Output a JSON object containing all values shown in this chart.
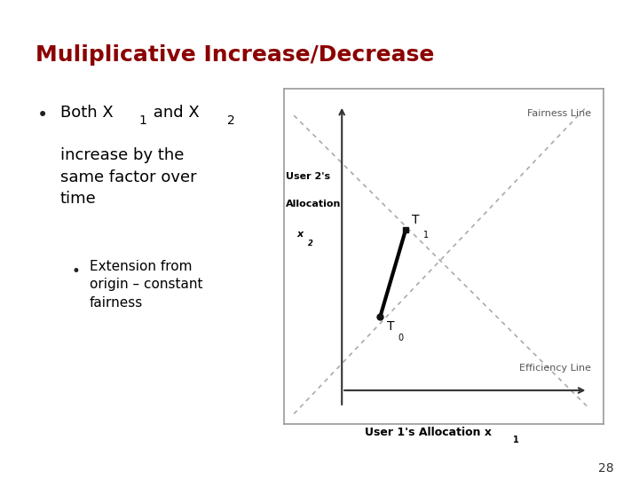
{
  "title": "Muliplicative Increase/Decrease",
  "title_color": "#8B0000",
  "title_fontsize": 18,
  "bg_color": "#FFFFFF",
  "header_bar_color": "#1a3a6b",
  "left_stripe_color_dark": "#B8B87A",
  "left_stripe_color_light": "#D8D8B0",
  "bullet1_text": "Both X",
  "bullet1_sub1": "1",
  "bullet1_mid": " and X",
  "bullet1_sub2": "2",
  "bullet1_cont": " increase by the\nsame factor over\ntime",
  "bullet2": "Extension from\norigin – constant\nfairness",
  "ylabel_line1": "User 2's",
  "ylabel_line2": "Allocation",
  "ylabel_line3": "x",
  "ylabel_sub": "2",
  "xlabel": "User 1's Allocation x",
  "xlabel_sub": "1",
  "fairness_label": "Fairness Line",
  "efficiency_label": "Efficiency Line",
  "T0_label": "T",
  "T0_sub": "0",
  "T1_label": "T",
  "T1_sub": "1",
  "page_num": "28"
}
